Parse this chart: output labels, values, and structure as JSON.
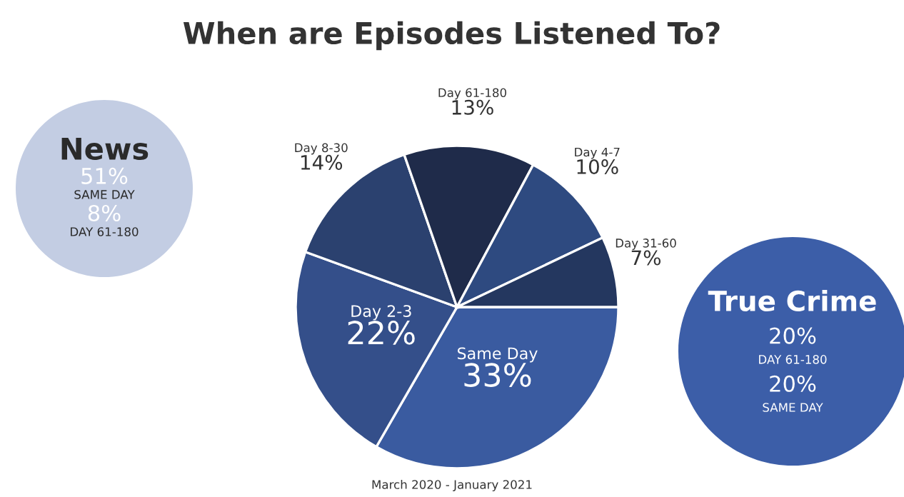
{
  "chart_data": [
    {
      "type": "pie",
      "title": "When are Episodes Listened To?",
      "categories": [
        "Same Day",
        "Day 2-3",
        "Day 8-30",
        "Day 61-180",
        "Day 4-7",
        "Day 31-60"
      ],
      "values": [
        33,
        22,
        14,
        13,
        10,
        7
      ],
      "value_labels": [
        "33%",
        "22%",
        "14%",
        "13%",
        "10%",
        "7%"
      ],
      "colors": [
        "#3a5ba0",
        "#344f8a",
        "#2b416f",
        "#1f2b4a",
        "#2e4a80",
        "#24375f"
      ],
      "annotations": [
        "March 2020 - January 2021"
      ]
    },
    {
      "type": "other",
      "title": "News",
      "color": "#c3cde3",
      "annotations": [
        "51%",
        "SAME DAY",
        "8%",
        "DAY 61-180"
      ]
    },
    {
      "type": "other",
      "title": "True Crime",
      "color": "#3c5ea8",
      "annotations": [
        "20%",
        "DAY 61-180",
        "20%",
        "SAME DAY"
      ]
    }
  ]
}
